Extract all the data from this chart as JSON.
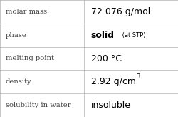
{
  "rows": [
    {
      "label": "molar mass",
      "value": "72.076 g/mol",
      "type": "plain"
    },
    {
      "label": "phase",
      "value": "solid",
      "type": "phase",
      "sub": " (at STP)"
    },
    {
      "label": "melting point",
      "value": "200 °C",
      "type": "plain"
    },
    {
      "label": "density",
      "value": "2.92 g/cm",
      "type": "density",
      "super": "3"
    },
    {
      "label": "solubility in water",
      "value": "insoluble",
      "type": "plain"
    }
  ],
  "col_split": 0.47,
  "bg_color": "#ffffff",
  "grid_color": "#b0b0b0",
  "label_color": "#404040",
  "value_color": "#000000",
  "label_fontsize": 7.2,
  "value_fontsize": 9.0,
  "sub_fontsize": 6.0,
  "fig_width": 2.5,
  "fig_height": 1.64,
  "dpi": 100
}
